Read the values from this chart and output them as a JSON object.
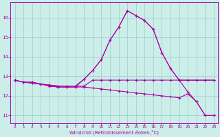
{
  "background_color": "#cceee8",
  "grid_color": "#99cccc",
  "line_color": "#aa00aa",
  "xlabel": "Windchill (Refroidissement éolien,°C)",
  "x": [
    0,
    1,
    2,
    3,
    4,
    5,
    6,
    7,
    8,
    9,
    10,
    11,
    12,
    13,
    14,
    15,
    16,
    17,
    18,
    19,
    20,
    21,
    22,
    23
  ],
  "line1": [
    12.8,
    12.7,
    12.7,
    12.6,
    12.55,
    12.5,
    12.5,
    12.5,
    12.5,
    12.8,
    12.8,
    12.8,
    12.8,
    12.8,
    12.8,
    12.8,
    12.8,
    12.8,
    12.8,
    12.8,
    12.8,
    12.8,
    12.8,
    12.8
  ],
  "line2": [
    12.8,
    12.7,
    12.7,
    12.6,
    12.55,
    12.5,
    12.5,
    12.5,
    12.85,
    13.3,
    13.85,
    14.85,
    15.5,
    16.35,
    16.1,
    15.85,
    15.4,
    14.2,
    13.4,
    12.8,
    12.8,
    12.8,
    12.8,
    12.8
  ],
  "line3": [
    12.8,
    12.7,
    12.65,
    12.6,
    12.5,
    12.45,
    12.45,
    12.45,
    12.45,
    12.4,
    12.35,
    12.3,
    12.25,
    12.2,
    12.15,
    12.1,
    12.05,
    12.0,
    11.95,
    11.9,
    12.1,
    11.7,
    11.0,
    11.0
  ],
  "line4": [
    12.8,
    12.7,
    12.65,
    12.6,
    12.5,
    12.45,
    12.45,
    12.45,
    12.85,
    13.3,
    13.85,
    14.85,
    15.5,
    16.35,
    16.1,
    15.85,
    15.4,
    14.2,
    13.4,
    12.8,
    12.2,
    11.7,
    11.0,
    11.0
  ],
  "ylim": [
    10.6,
    16.8
  ],
  "yticks": [
    11,
    12,
    13,
    14,
    15,
    16
  ],
  "xticks": [
    0,
    1,
    2,
    3,
    4,
    5,
    6,
    7,
    8,
    9,
    10,
    11,
    12,
    13,
    14,
    15,
    16,
    17,
    18,
    19,
    20,
    21,
    22,
    23
  ]
}
